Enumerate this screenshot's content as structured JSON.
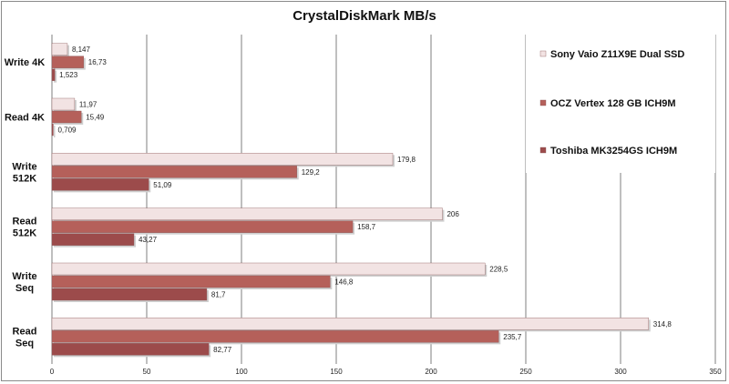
{
  "chart_data": {
    "type": "bar",
    "orientation": "horizontal",
    "title": "CrystalDiskMark MB/s",
    "xlabel": "",
    "ylabel": "",
    "xlim": [
      0,
      350
    ],
    "xticks": [
      0,
      50,
      100,
      150,
      200,
      250,
      300,
      350
    ],
    "grid": true,
    "legend_position": "right",
    "categories": [
      "Write 4K",
      "Read 4K",
      "Write\n512K",
      "Read\n512K",
      "Write\nSeq",
      "Read\nSeq"
    ],
    "series": [
      {
        "name": "Sony Vaio Z11X9E Dual SSD",
        "color": "#f2e3e3",
        "values": [
          8.147,
          11.97,
          179.8,
          206,
          228.5,
          314.8
        ],
        "labels": [
          "8,147",
          "11,97",
          "179,8",
          "206",
          "228,5",
          "314,8"
        ]
      },
      {
        "name": "OCZ Vertex 128 GB ICH9M",
        "color": "#b5605a",
        "values": [
          16.73,
          15.49,
          129.2,
          158.7,
          146.8,
          235.7
        ],
        "labels": [
          "16,73",
          "15,49",
          "129,2",
          "158,7",
          "146,8",
          "235,7"
        ]
      },
      {
        "name": "Toshiba MK3254GS ICH9M",
        "color": "#9c4b4b",
        "values": [
          1.523,
          0.709,
          51.09,
          43.27,
          81.7,
          82.77
        ],
        "labels": [
          "1,523",
          "0,709",
          "51,09",
          "43,27",
          "81,7",
          "82,77"
        ]
      }
    ]
  }
}
